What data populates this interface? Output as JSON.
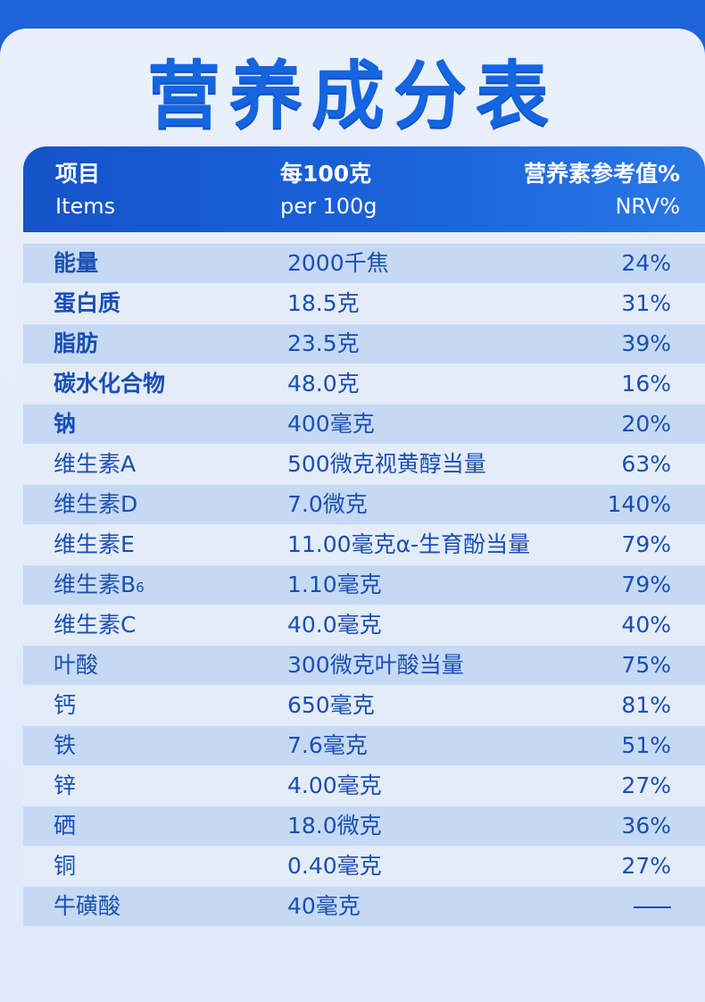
{
  "title": "营养成分表",
  "header": {
    "col1_zh": "项目",
    "col1_en": "Items",
    "col2_zh": "每100克",
    "col2_en": "per 100g",
    "col3_zh": "营养素参考值%",
    "col3_en": "NRV%"
  },
  "rows": [
    {
      "item": "能量",
      "amount": "2000千焦",
      "nrv": "24%",
      "bold": true
    },
    {
      "item": "蛋白质",
      "amount": "18.5克",
      "nrv": "31%",
      "bold": true
    },
    {
      "item": "脂肪",
      "amount": "23.5克",
      "nrv": "39%",
      "bold": true
    },
    {
      "item": "碳水化合物",
      "amount": "48.0克",
      "nrv": "16%",
      "bold": true
    },
    {
      "item": "钠",
      "amount": "400毫克",
      "nrv": "20%",
      "bold": true
    },
    {
      "item": "维生素A",
      "amount": "500微克视黄醇当量",
      "nrv": "63%",
      "bold": false
    },
    {
      "item": "维生素D",
      "amount": "7.0微克",
      "nrv": "140%",
      "bold": false
    },
    {
      "item": "维生素E",
      "amount": "11.00毫克α-生育酚当量",
      "nrv": "79%",
      "bold": false
    },
    {
      "item": "维生素B",
      "item_sub": "6",
      "amount": "1.10毫克",
      "nrv": "79%",
      "bold": false
    },
    {
      "item": "维生素C",
      "amount": "40.0毫克",
      "nrv": "40%",
      "bold": false
    },
    {
      "item": "叶酸",
      "amount": "300微克叶酸当量",
      "nrv": "75%",
      "bold": false
    },
    {
      "item": "钙",
      "amount": "650毫克",
      "nrv": "81%",
      "bold": false
    },
    {
      "item": "铁",
      "amount": "7.6毫克",
      "nrv": "51%",
      "bold": false
    },
    {
      "item": "锌",
      "amount": "4.00毫克",
      "nrv": "27%",
      "bold": false
    },
    {
      "item": "硒",
      "amount": "18.0微克",
      "nrv": "36%",
      "bold": false
    },
    {
      "item": "铜",
      "amount": "0.40毫克",
      "nrv": "27%",
      "bold": false
    },
    {
      "item": "牛磺酸",
      "amount": "40毫克",
      "nrv": "—",
      "bold": false
    }
  ]
}
